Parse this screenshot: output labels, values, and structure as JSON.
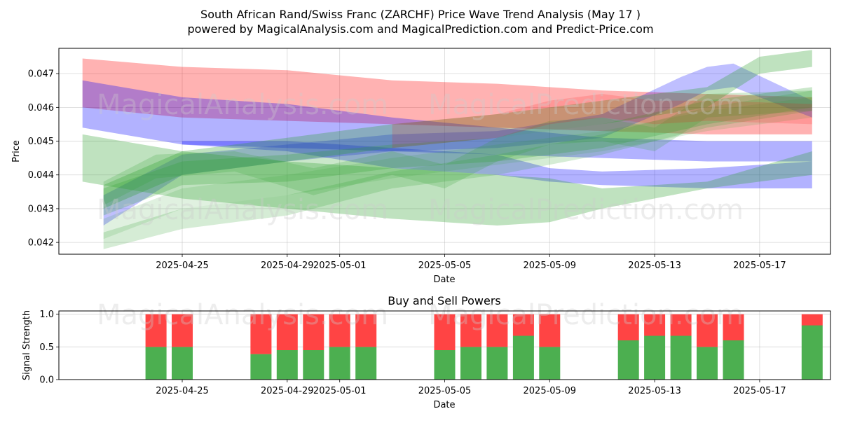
{
  "title_line1": "South African Rand/Swiss Franc (ZARCHF) Price Wave Trend Analysis (May 17 )",
  "title_line2": "powered by MagicalAnalysis.com and MagicalPrediction.com and Predict-Price.com",
  "watermarks": {
    "left": "MagicalAnalysis.com",
    "right": "MagicalPrediction.com"
  },
  "colors": {
    "green": "#2ca02c",
    "red": "#ff0000",
    "blue": "#0000ff",
    "buy_bar": "#4caf50",
    "sell_bar": "#ff4444"
  },
  "chart_data": [
    {
      "type": "area",
      "name": "price-wave-chart",
      "xlabel": "Date",
      "ylabel": "Price",
      "x_start": "2025-04-21",
      "xlim_days": [
        -0.7,
        28.7
      ],
      "ylim": [
        0.04165,
        0.04775
      ],
      "yticks": [
        0.042,
        0.043,
        0.044,
        0.045,
        0.046,
        0.047
      ],
      "ytick_labels": [
        "0.042",
        "0.043",
        "0.044",
        "0.045",
        "0.046",
        "0.047"
      ],
      "xtick_days": [
        4,
        8,
        10,
        14,
        18,
        22,
        26
      ],
      "xtick_labels": [
        "2025-04-25",
        "2025-04-29",
        "2025-05-01",
        "2025-05-05",
        "2025-05-09",
        "2025-05-13",
        "2025-05-17"
      ],
      "grid": true,
      "series": [
        {
          "name": "red-band",
          "color": "red",
          "opacity": 0.3,
          "x": [
            0.2,
            4,
            8,
            12,
            16,
            20,
            24,
            28
          ],
          "upper": [
            0.04745,
            0.0472,
            0.0471,
            0.0468,
            0.0467,
            0.0465,
            0.0464,
            0.0463
          ],
          "lower": [
            0.046,
            0.0457,
            0.0456,
            0.0455,
            0.0454,
            0.0453,
            0.0452,
            0.0452
          ]
        },
        {
          "name": "blue-band-upper",
          "color": "blue",
          "opacity": 0.3,
          "x": [
            0.2,
            4,
            8,
            12,
            16,
            20,
            24,
            28
          ],
          "upper": [
            0.0468,
            0.0463,
            0.0461,
            0.0457,
            0.0454,
            0.0451,
            0.045,
            0.045
          ],
          "lower": [
            0.0454,
            0.0449,
            0.0448,
            0.0447,
            0.0446,
            0.0445,
            0.0444,
            0.0444
          ]
        },
        {
          "name": "blue-band-lower",
          "color": "blue",
          "opacity": 0.3,
          "x": [
            4,
            8,
            12,
            16,
            18,
            20,
            24,
            28
          ],
          "upper": [
            0.045,
            0.045,
            0.0448,
            0.0446,
            0.0442,
            0.0441,
            0.0442,
            0.0444
          ],
          "lower": [
            0.0449,
            0.0447,
            0.0442,
            0.044,
            0.0438,
            0.0437,
            0.0436,
            0.0436
          ]
        },
        {
          "name": "blue-band-rise",
          "color": "blue",
          "opacity": 0.25,
          "x": [
            1,
            4,
            8,
            12,
            16,
            20,
            23,
            24,
            25,
            28
          ],
          "upper": [
            0.0434,
            0.0446,
            0.0449,
            0.0452,
            0.0453,
            0.0458,
            0.0469,
            0.0472,
            0.0473,
            0.0462
          ],
          "lower": [
            0.0425,
            0.044,
            0.0444,
            0.0447,
            0.0448,
            0.0451,
            0.0461,
            0.0465,
            0.0466,
            0.0457
          ]
        },
        {
          "name": "green-band-wide",
          "color": "green",
          "opacity": 0.3,
          "x": [
            0.2,
            4,
            8,
            12,
            16,
            18,
            20,
            24,
            28
          ],
          "upper": [
            0.0452,
            0.0447,
            0.0444,
            0.0442,
            0.044,
            0.0439,
            0.0436,
            0.0438,
            0.0447
          ],
          "lower": [
            0.0438,
            0.0433,
            0.043,
            0.0427,
            0.0425,
            0.0426,
            0.043,
            0.0436,
            0.044
          ]
        },
        {
          "name": "green-band-top",
          "color": "green",
          "opacity": 0.3,
          "x": [
            1,
            4,
            8,
            12,
            16,
            20,
            24,
            26,
            28
          ],
          "upper": [
            0.0437,
            0.0447,
            0.0451,
            0.0455,
            0.0458,
            0.0462,
            0.0466,
            0.0475,
            0.0477
          ],
          "lower": [
            0.043,
            0.044,
            0.0444,
            0.0448,
            0.0451,
            0.0455,
            0.046,
            0.047,
            0.0472
          ]
        },
        {
          "name": "green-band-mid",
          "color": "green",
          "opacity": 0.25,
          "x": [
            1,
            4,
            8,
            12,
            16,
            20,
            24,
            28
          ],
          "upper": [
            0.0436,
            0.0444,
            0.0446,
            0.0449,
            0.0451,
            0.0455,
            0.0462,
            0.0466
          ],
          "lower": [
            0.0428,
            0.0437,
            0.0438,
            0.0442,
            0.0444,
            0.0448,
            0.0455,
            0.046
          ]
        },
        {
          "name": "green-band-low",
          "color": "green",
          "opacity": 0.2,
          "x": [
            1,
            4,
            8,
            12,
            16,
            20,
            24,
            28
          ],
          "upper": [
            0.0423,
            0.043,
            0.0434,
            0.0441,
            0.0446,
            0.0452,
            0.046,
            0.0465
          ],
          "lower": [
            0.0418,
            0.0424,
            0.0428,
            0.0436,
            0.044,
            0.0446,
            0.0454,
            0.0459
          ]
        },
        {
          "name": "green-band-wave",
          "color": "green",
          "opacity": 0.2,
          "x": [
            1,
            3,
            6,
            9,
            12,
            14,
            16,
            18,
            20,
            22,
            24,
            28
          ],
          "upper": [
            0.0438,
            0.0446,
            0.0447,
            0.0442,
            0.0447,
            0.0443,
            0.0451,
            0.0456,
            0.0457,
            0.0454,
            0.0464,
            0.0465
          ],
          "lower": [
            0.0431,
            0.0439,
            0.0441,
            0.0434,
            0.044,
            0.0436,
            0.0444,
            0.0449,
            0.045,
            0.0447,
            0.0457,
            0.0459
          ]
        },
        {
          "name": "green-band-faint",
          "color": "green",
          "opacity": 0.15,
          "x": [
            1,
            4,
            8,
            12,
            16,
            20,
            24,
            28
          ],
          "upper": [
            0.0427,
            0.0436,
            0.044,
            0.0445,
            0.0449,
            0.0453,
            0.0459,
            0.0463
          ],
          "lower": [
            0.0421,
            0.043,
            0.0434,
            0.0439,
            0.0443,
            0.0447,
            0.0453,
            0.0457
          ]
        },
        {
          "name": "red-band-rise",
          "color": "red",
          "opacity": 0.15,
          "x": [
            12,
            16,
            18,
            20,
            22,
            24,
            28
          ],
          "upper": [
            0.0455,
            0.0458,
            0.0462,
            0.0464,
            0.0462,
            0.0462,
            0.0461
          ],
          "lower": [
            0.0448,
            0.0451,
            0.0455,
            0.0457,
            0.0455,
            0.0456,
            0.0455
          ]
        }
      ]
    },
    {
      "type": "bar",
      "name": "buy-sell-power-chart",
      "title": "Buy and Sell Powers",
      "xlabel": "Date",
      "ylabel": "Signal Strength",
      "x_start": "2025-04-21",
      "xlim_days": [
        -0.7,
        28.7
      ],
      "ylim": [
        0,
        1.05
      ],
      "yticks": [
        0.0,
        0.5,
        1.0
      ],
      "ytick_labels": [
        "0.0",
        "0.5",
        "1.0"
      ],
      "xtick_days": [
        4,
        8,
        10,
        14,
        18,
        22,
        26
      ],
      "xtick_labels": [
        "2025-04-25",
        "2025-04-29",
        "2025-05-01",
        "2025-05-05",
        "2025-05-09",
        "2025-05-13",
        "2025-05-17"
      ],
      "bar_days": [
        3,
        4,
        7,
        8,
        9,
        10,
        11,
        14,
        15,
        16,
        17,
        18,
        21,
        22,
        23,
        24,
        25,
        28
      ],
      "buy": [
        0.5,
        0.5,
        0.39,
        0.45,
        0.45,
        0.5,
        0.5,
        0.45,
        0.5,
        0.5,
        0.67,
        0.5,
        0.6,
        0.67,
        0.67,
        0.5,
        0.6,
        0.83
      ],
      "sell": [
        0.5,
        0.5,
        0.61,
        0.55,
        0.55,
        0.5,
        0.5,
        0.55,
        0.5,
        0.5,
        0.33,
        0.5,
        0.4,
        0.33,
        0.33,
        0.5,
        0.4,
        0.17
      ]
    }
  ]
}
